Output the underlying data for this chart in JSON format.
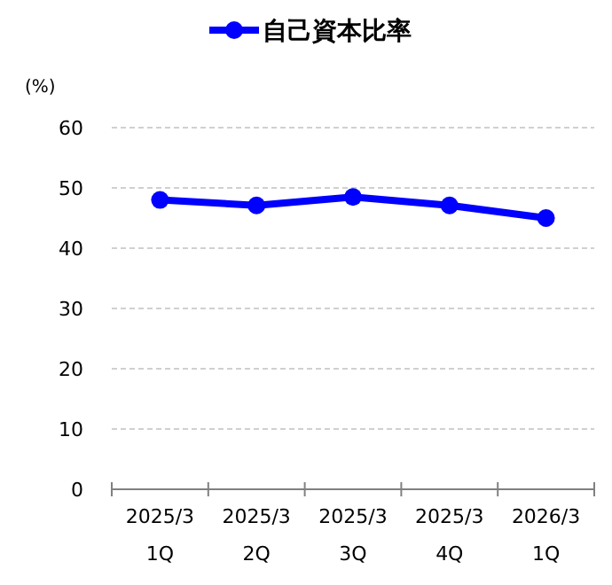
{
  "chart_data": {
    "type": "line",
    "ylabel": "(%)",
    "categories": [
      "2025/3\n1Q",
      "2025/3\n2Q",
      "2025/3\n3Q",
      "2025/3\n4Q",
      "2026/3\n1Q"
    ],
    "series": [
      {
        "name": "自己資本比率",
        "color": "#0000ff",
        "values": [
          48.0,
          47.1,
          48.5,
          47.1,
          45.0
        ]
      }
    ],
    "ylim": [
      0,
      60
    ],
    "yticks": [
      0,
      10,
      20,
      30,
      40,
      50,
      60
    ],
    "grid": "y",
    "legend": "top",
    "marker": "circle",
    "line_style": "solid"
  }
}
